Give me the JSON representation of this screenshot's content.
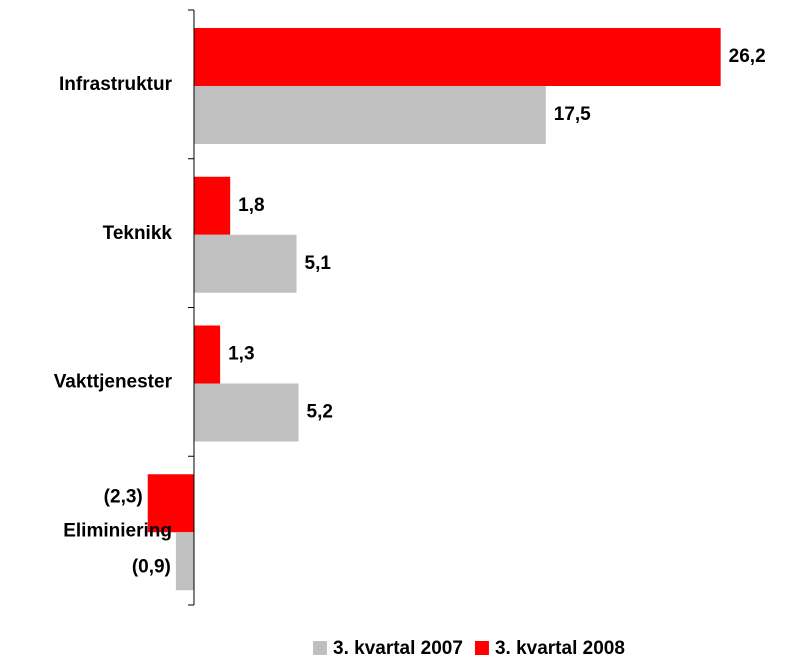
{
  "chart_data": {
    "type": "barh",
    "categories": [
      "Infrastruktur",
      "Teknikk",
      "Vakttjenester",
      "Eliminiering"
    ],
    "series": [
      {
        "name": "3. kvartal 2008",
        "color": "#ff0000",
        "values": [
          26.2,
          1.8,
          1.3,
          -2.3
        ],
        "value_labels": [
          "26,2",
          "1,8",
          "1,3",
          "(2,3)"
        ]
      },
      {
        "name": "3. kvartal 2007",
        "color": "#c0c0c0",
        "values": [
          17.5,
          5.1,
          5.2,
          -0.9
        ],
        "value_labels": [
          "17,5",
          "5,1",
          "5,2",
          "(0,9)"
        ]
      }
    ],
    "xlim": [
      -9.65,
      29.5
    ],
    "legend": "bottom"
  }
}
